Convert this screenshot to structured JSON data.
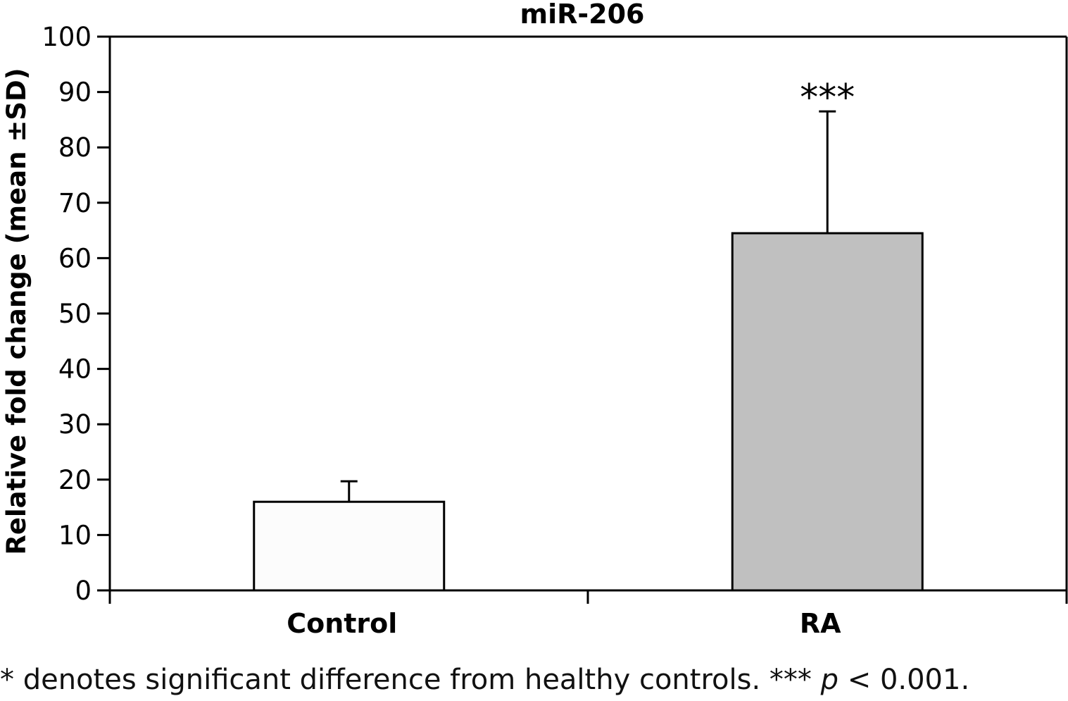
{
  "chart_data": {
    "type": "bar",
    "title": "miR-206",
    "xlabel": "",
    "ylabel": "Relative fold change (mean ±SD)",
    "ylim": [
      0,
      100
    ],
    "yticks": [
      0,
      10,
      20,
      30,
      40,
      50,
      60,
      70,
      80,
      90,
      100
    ],
    "categories": [
      "Control",
      "RA"
    ],
    "values": [
      16,
      64.5
    ],
    "errors": [
      3.7,
      22
    ],
    "bar_colors": [
      "#fcfcfc",
      "#c0c0c0"
    ],
    "annotations": [
      {
        "category": "RA",
        "text": "***"
      }
    ]
  },
  "footnote": {
    "text": "* denotes significant difference from healthy controls. *** ",
    "p_symbol": "p",
    "p_rest": " < 0.001."
  }
}
